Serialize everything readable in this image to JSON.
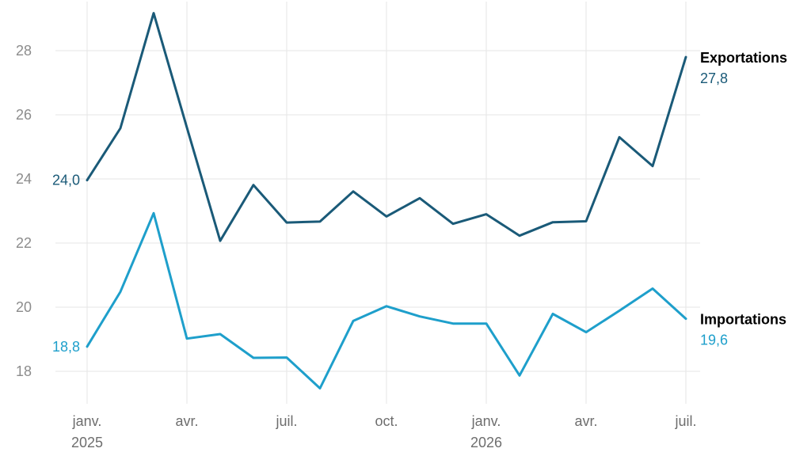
{
  "chart_data": {
    "type": "line",
    "x": [
      "2025-01",
      "2025-02",
      "2025-03",
      "2025-04",
      "2025-05",
      "2025-06",
      "2025-07",
      "2025-08",
      "2025-09",
      "2025-10",
      "2025-11",
      "2025-12",
      "2026-01",
      "2026-02",
      "2026-03",
      "2026-04",
      "2026-05",
      "2026-06",
      "2026-07"
    ],
    "series": [
      {
        "name": "Exportations",
        "color": "#1a5a78",
        "values": [
          23.96,
          25.58,
          29.17,
          25.6,
          22.07,
          23.81,
          22.64,
          22.67,
          23.61,
          22.83,
          23.4,
          22.6,
          22.9,
          22.23,
          22.65,
          22.68,
          25.3,
          24.4,
          27.8
        ],
        "start_label": "24,0",
        "end_label": "27,8"
      },
      {
        "name": "Importations",
        "color": "#1e9fcb",
        "values": [
          18.77,
          20.48,
          22.93,
          19.02,
          19.16,
          18.42,
          18.43,
          17.47,
          19.57,
          20.03,
          19.71,
          19.49,
          19.49,
          17.87,
          19.79,
          19.22,
          19.89,
          20.58,
          19.64
        ],
        "start_label": "18,8",
        "end_label": "19,6"
      }
    ],
    "yticks": [
      18,
      20,
      22,
      24,
      26,
      28
    ],
    "ytick_labels": [
      "18",
      "20",
      "22",
      "24",
      "26",
      "28"
    ],
    "ylim": [
      17.0,
      29.6
    ],
    "xticks": [
      {
        "x": "2025-01",
        "label": "janv.",
        "sublabel": "2025"
      },
      {
        "x": "2025-04",
        "label": "avr.",
        "sublabel": ""
      },
      {
        "x": "2025-07",
        "label": "juil.",
        "sublabel": ""
      },
      {
        "x": "2025-10",
        "label": "oct.",
        "sublabel": ""
      },
      {
        "x": "2026-01",
        "label": "janv.",
        "sublabel": "2026"
      },
      {
        "x": "2026-04",
        "label": "avr.",
        "sublabel": ""
      },
      {
        "x": "2026-07",
        "label": "juil.",
        "sublabel": ""
      }
    ],
    "grid": true,
    "legend": "inline-right"
  }
}
